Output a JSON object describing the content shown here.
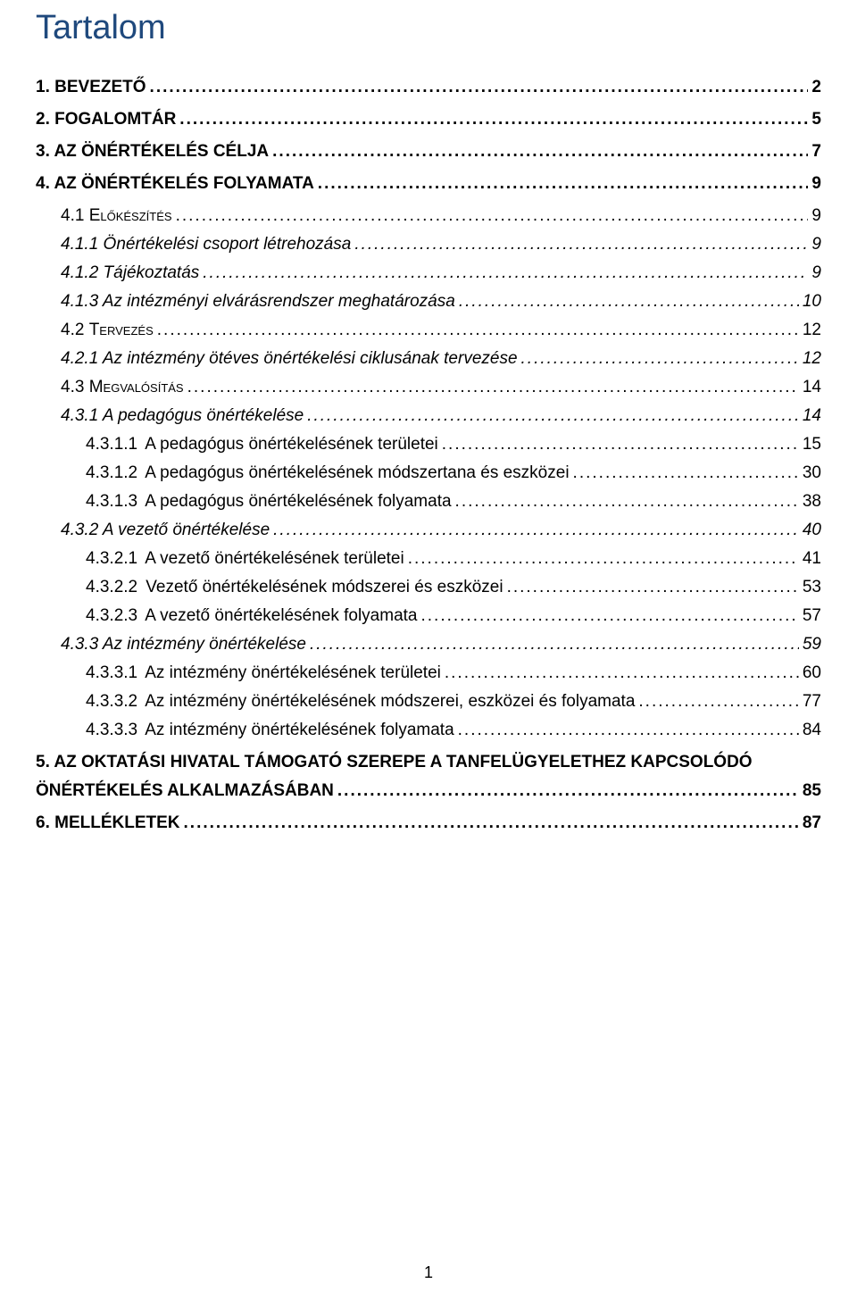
{
  "title": "Tartalom",
  "page_number": "1",
  "colors": {
    "title": "#1f497d",
    "text": "#000000",
    "background": "#ffffff"
  },
  "typography": {
    "title_fontsize": 38,
    "body_fontsize": 19,
    "font_family": "Arial"
  },
  "toc": [
    {
      "level": 1,
      "num": "1.",
      "txt": "BEVEZETŐ",
      "page": "2"
    },
    {
      "level": 1,
      "num": "2.",
      "txt": "FOGALOMTÁR",
      "page": "5"
    },
    {
      "level": 1,
      "num": "3.",
      "txt": "AZ ÖNÉRTÉKELÉS CÉLJA",
      "page": "7"
    },
    {
      "level": 1,
      "num": "4.",
      "txt": "AZ ÖNÉRTÉKELÉS FOLYAMATA",
      "page": "9"
    },
    {
      "level": 2,
      "smallcaps": true,
      "num": "4.1",
      "txt": "Előkészítés",
      "page": "9"
    },
    {
      "level": 3,
      "num": "4.1.1",
      "txt": "Önértékelési csoport létrehozása",
      "page": "9"
    },
    {
      "level": 3,
      "num": "4.1.2",
      "txt": "Tájékoztatás",
      "page": "9"
    },
    {
      "level": 3,
      "num": "4.1.3",
      "txt": "Az intézményi elvárásrendszer meghatározása",
      "page": "10"
    },
    {
      "level": 2,
      "smallcaps": true,
      "num": "4.2",
      "txt": "Tervezés",
      "page": "12"
    },
    {
      "level": 3,
      "num": "4.2.1",
      "txt": "Az intézmény ötéves önértékelési ciklusának tervezése",
      "page": "12"
    },
    {
      "level": 2,
      "smallcaps": true,
      "num": "4.3",
      "txt": "Megvalósítás",
      "page": "14"
    },
    {
      "level": 3,
      "num": "4.3.1",
      "txt": "A pedagógus önértékelése",
      "page": "14"
    },
    {
      "level": 4,
      "num": "4.3.1.1",
      "txt": "A pedagógus önértékelésének területei",
      "page": "15"
    },
    {
      "level": 4,
      "num": "4.3.1.2",
      "txt": "A pedagógus önértékelésének módszertana és eszközei",
      "page": "30"
    },
    {
      "level": 4,
      "num": "4.3.1.3",
      "txt": "A pedagógus önértékelésének folyamata",
      "page": "38"
    },
    {
      "level": 3,
      "num": "4.3.2",
      "txt": "A vezető önértékelése",
      "page": "40"
    },
    {
      "level": 4,
      "num": "4.3.2.1",
      "txt": "A vezető önértékelésének területei",
      "page": "41"
    },
    {
      "level": 4,
      "num": "4.3.2.2",
      "txt": "Vezető önértékelésének módszerei és eszközei",
      "page": "53"
    },
    {
      "level": 4,
      "num": "4.3.2.3",
      "txt": "A vezető önértékelésének folyamata",
      "page": "57"
    },
    {
      "level": 3,
      "num": "4.3.3",
      "txt": "Az intézmény önértékelése",
      "page": "59"
    },
    {
      "level": 4,
      "num": "4.3.3.1",
      "txt": "Az intézmény önértékelésének területei",
      "page": "60"
    },
    {
      "level": 4,
      "num": "4.3.3.2",
      "txt": "Az intézmény önértékelésének módszerei, eszközei és folyamata",
      "page": "77"
    },
    {
      "level": 4,
      "num": "4.3.3.3",
      "txt": "Az intézmény önértékelésének folyamata",
      "page": "84"
    },
    {
      "level": 1,
      "multiline": true,
      "num": "5.",
      "txt_line1": "AZ OKTATÁSI HIVATAL TÁMOGATÓ SZEREPE  A TANFELÜGYELETHEZ KAPCSOLÓDÓ",
      "txt_line2": "ÖNÉRTÉKELÉS ALKALMAZÁSÁBAN",
      "page": "85"
    },
    {
      "level": 1,
      "num": "6.",
      "txt": "MELLÉKLETEK",
      "page": "87"
    }
  ]
}
